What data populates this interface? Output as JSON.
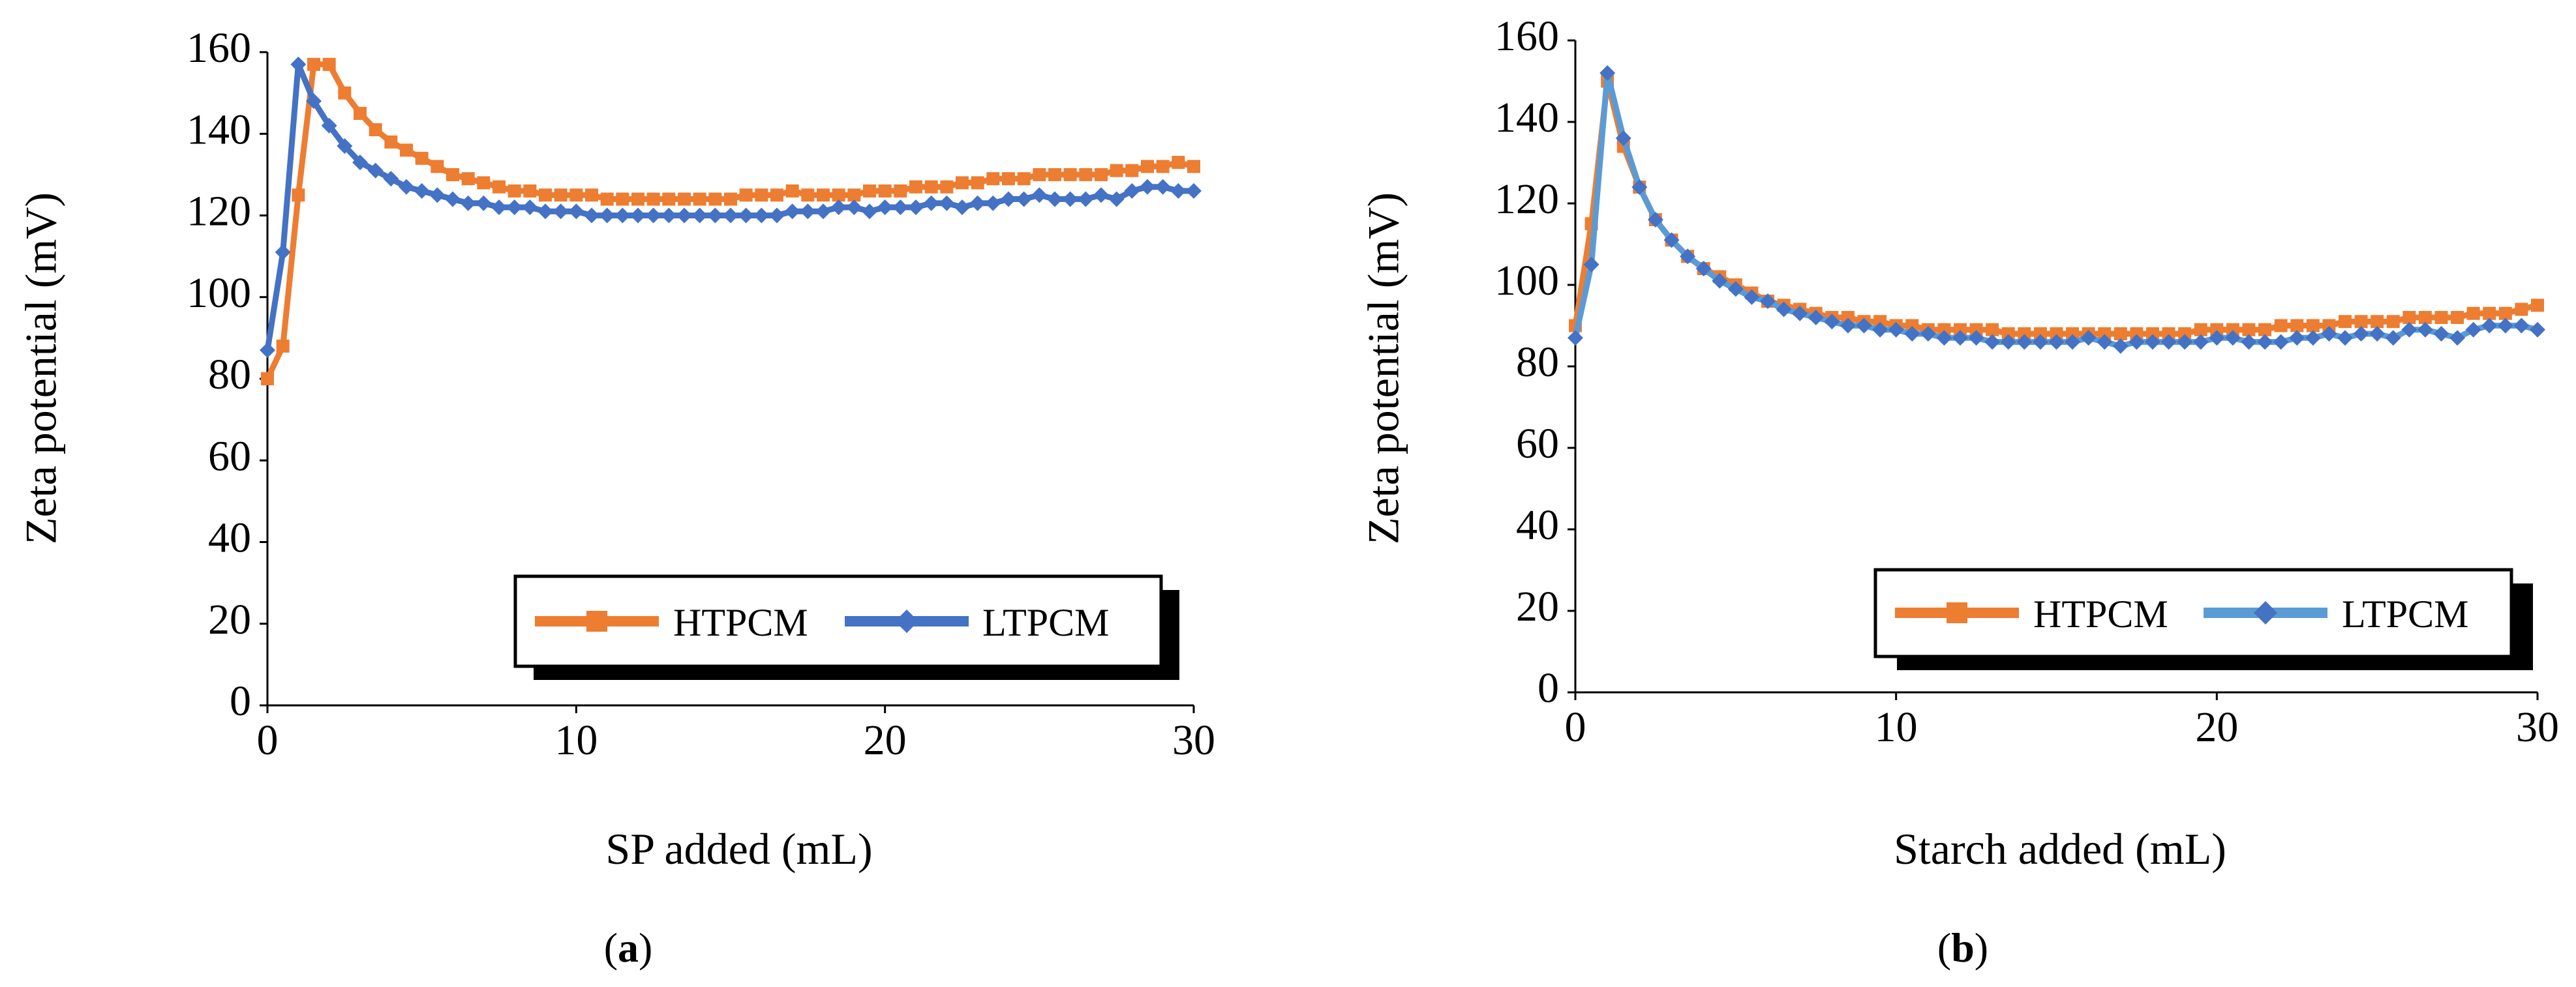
{
  "chart_data": [
    {
      "type": "line",
      "panel_id": "a",
      "xlabel": "SP added (mL)",
      "ylabel": "Zeta potential (mV)",
      "xlim": [
        0,
        30
      ],
      "ylim": [
        0,
        160
      ],
      "xticks": [
        0,
        10,
        20,
        30
      ],
      "yticks": [
        0,
        20,
        40,
        60,
        80,
        100,
        120,
        140,
        160
      ],
      "grid": false,
      "legend_position": "bottom-right",
      "series": [
        {
          "name": "HTPCM",
          "color": "#ED7D31",
          "marker": "square",
          "x": [
            0,
            0.5,
            1,
            1.5,
            2,
            2.5,
            3,
            3.5,
            4,
            4.5,
            5,
            5.5,
            6,
            6.5,
            7,
            7.5,
            8,
            8.5,
            9,
            9.5,
            10,
            10.5,
            11,
            11.5,
            12,
            12.5,
            13,
            13.5,
            14,
            14.5,
            15,
            15.5,
            16,
            16.5,
            17,
            17.5,
            18,
            18.5,
            19,
            19.5,
            20,
            20.5,
            21,
            21.5,
            22,
            22.5,
            23,
            23.5,
            24,
            24.5,
            25,
            25.5,
            26,
            26.5,
            27,
            27.5,
            28,
            28.5,
            29,
            29.5,
            30
          ],
          "y": [
            80,
            88,
            125,
            157,
            157,
            150,
            145,
            141,
            138,
            136,
            134,
            132,
            130,
            129,
            128,
            127,
            126,
            126,
            125,
            125,
            125,
            125,
            124,
            124,
            124,
            124,
            124,
            124,
            124,
            124,
            124,
            125,
            125,
            125,
            126,
            125,
            125,
            125,
            125,
            126,
            126,
            126,
            127,
            127,
            127,
            128,
            128,
            129,
            129,
            129,
            130,
            130,
            130,
            130,
            130,
            131,
            131,
            132,
            132,
            133,
            132
          ]
        },
        {
          "name": "LTPCM",
          "color": "#4472C4",
          "marker": "diamond",
          "x": [
            0,
            0.5,
            1,
            1.5,
            2,
            2.5,
            3,
            3.5,
            4,
            4.5,
            5,
            5.5,
            6,
            6.5,
            7,
            7.5,
            8,
            8.5,
            9,
            9.5,
            10,
            10.5,
            11,
            11.5,
            12,
            12.5,
            13,
            13.5,
            14,
            14.5,
            15,
            15.5,
            16,
            16.5,
            17,
            17.5,
            18,
            18.5,
            19,
            19.5,
            20,
            20.5,
            21,
            21.5,
            22,
            22.5,
            23,
            23.5,
            24,
            24.5,
            25,
            25.5,
            26,
            26.5,
            27,
            27.5,
            28,
            28.5,
            29,
            29.5,
            30
          ],
          "y": [
            87,
            111,
            157,
            148,
            142,
            137,
            133,
            131,
            129,
            127,
            126,
            125,
            124,
            123,
            123,
            122,
            122,
            122,
            121,
            121,
            121,
            120,
            120,
            120,
            120,
            120,
            120,
            120,
            120,
            120,
            120,
            120,
            120,
            120,
            121,
            121,
            121,
            122,
            122,
            121,
            122,
            122,
            122,
            123,
            123,
            122,
            123,
            123,
            124,
            124,
            125,
            124,
            124,
            124,
            125,
            124,
            126,
            127,
            127,
            126,
            126
          ]
        }
      ]
    },
    {
      "type": "line",
      "panel_id": "b",
      "xlabel": "Starch added (mL)",
      "ylabel": "Zeta potential (mV)",
      "xlim": [
        0,
        30
      ],
      "ylim": [
        0,
        160
      ],
      "xticks": [
        0,
        10,
        20,
        30
      ],
      "yticks": [
        0,
        20,
        40,
        60,
        80,
        100,
        120,
        140,
        160
      ],
      "grid": false,
      "legend_position": "bottom-right",
      "series": [
        {
          "name": "HTPCM",
          "color": "#ED7D31",
          "marker": "square",
          "x": [
            0,
            0.5,
            1,
            1.5,
            2,
            2.5,
            3,
            3.5,
            4,
            4.5,
            5,
            5.5,
            6,
            6.5,
            7,
            7.5,
            8,
            8.5,
            9,
            9.5,
            10,
            10.5,
            11,
            11.5,
            12,
            12.5,
            13,
            13.5,
            14,
            14.5,
            15,
            15.5,
            16,
            16.5,
            17,
            17.5,
            18,
            18.5,
            19,
            19.5,
            20,
            20.5,
            21,
            21.5,
            22,
            22.5,
            23,
            23.5,
            24,
            24.5,
            25,
            25.5,
            26,
            26.5,
            27,
            27.5,
            28,
            28.5,
            29,
            29.5,
            30
          ],
          "y": [
            90,
            115,
            150,
            134,
            124,
            116,
            111,
            107,
            104,
            102,
            100,
            98,
            96,
            95,
            94,
            93,
            92,
            92,
            91,
            91,
            90,
            90,
            89,
            89,
            89,
            89,
            89,
            88,
            88,
            88,
            88,
            88,
            88,
            88,
            88,
            88,
            88,
            88,
            88,
            89,
            89,
            89,
            89,
            89,
            90,
            90,
            90,
            90,
            91,
            91,
            91,
            91,
            92,
            92,
            92,
            92,
            93,
            93,
            93,
            94,
            95
          ]
        },
        {
          "name": "LTPCM",
          "color": "#5B9BD5",
          "marker": "diamond",
          "x": [
            0,
            0.5,
            1,
            1.5,
            2,
            2.5,
            3,
            3.5,
            4,
            4.5,
            5,
            5.5,
            6,
            6.5,
            7,
            7.5,
            8,
            8.5,
            9,
            9.5,
            10,
            10.5,
            11,
            11.5,
            12,
            12.5,
            13,
            13.5,
            14,
            14.5,
            15,
            15.5,
            16,
            16.5,
            17,
            17.5,
            18,
            18.5,
            19,
            19.5,
            20,
            20.5,
            21,
            21.5,
            22,
            22.5,
            23,
            23.5,
            24,
            24.5,
            25,
            25.5,
            26,
            26.5,
            27,
            27.5,
            28,
            28.5,
            29,
            29.5,
            30
          ],
          "y": [
            87,
            105,
            152,
            136,
            124,
            116,
            111,
            107,
            104,
            101,
            99,
            97,
            96,
            94,
            93,
            92,
            91,
            90,
            90,
            89,
            89,
            88,
            88,
            87,
            87,
            87,
            86,
            86,
            86,
            86,
            86,
            86,
            87,
            86,
            85,
            86,
            86,
            86,
            86,
            86,
            87,
            87,
            86,
            86,
            86,
            87,
            87,
            88,
            87,
            88,
            88,
            87,
            89,
            89,
            88,
            87,
            89,
            90,
            90,
            90,
            89
          ]
        }
      ]
    }
  ]
}
